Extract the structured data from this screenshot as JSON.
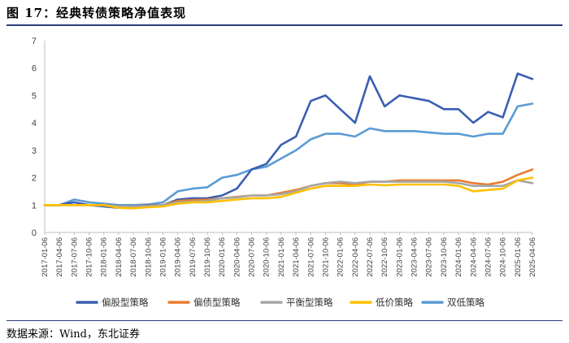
{
  "figure_title": "图 17：经典转债策略净值表现",
  "source_note": "数据来源：Wind，东北证券",
  "chart_data": {
    "type": "line",
    "title": "",
    "xlabel": "",
    "ylabel": "",
    "ylim": [
      0,
      7
    ],
    "yticks": [
      0,
      1,
      2,
      3,
      4,
      5,
      6,
      7
    ],
    "grid": false,
    "legend_position": "bottom",
    "x_tick_labels": [
      "2017-01-06",
      "2017-04-06",
      "2017-07-06",
      "2017-10-06",
      "2018-01-06",
      "2018-04-06",
      "2018-07-06",
      "2018-10-06",
      "2019-01-06",
      "2019-04-06",
      "2019-07-06",
      "2019-10-06",
      "2020-01-06",
      "2020-04-06",
      "2020-07-06",
      "2020-10-06",
      "2021-01-06",
      "2021-04-06",
      "2021-07-06",
      "2021-10-06",
      "2022-01-06",
      "2022-04-06",
      "2022-07-06",
      "2022-10-06",
      "2023-01-06",
      "2023-04-06",
      "2023-07-06",
      "2023-10-06",
      "2024-01-06",
      "2024-04-06",
      "2024-07-06",
      "2024-10-06",
      "2025-01-06",
      "2025-04-06"
    ],
    "series": [
      {
        "name": "偏股型策略",
        "color": "#3a5fb0",
        "values": [
          1.0,
          1.0,
          1.1,
          1.0,
          0.95,
          0.9,
          0.95,
          1.0,
          1.0,
          1.2,
          1.25,
          1.25,
          1.35,
          1.6,
          2.3,
          2.5,
          3.2,
          3.5,
          4.8,
          5.0,
          4.5,
          4.0,
          5.7,
          4.6,
          5.0,
          4.9,
          4.8,
          4.5,
          4.5,
          4.0,
          4.4,
          4.2,
          5.8,
          5.6
        ]
      },
      {
        "name": "偏债型策略",
        "color": "#e87d2e",
        "values": [
          1.0,
          1.0,
          1.0,
          1.0,
          1.0,
          0.95,
          0.95,
          0.98,
          1.0,
          1.15,
          1.18,
          1.2,
          1.25,
          1.3,
          1.35,
          1.35,
          1.45,
          1.55,
          1.7,
          1.8,
          1.8,
          1.75,
          1.85,
          1.85,
          1.9,
          1.9,
          1.9,
          1.9,
          1.9,
          1.8,
          1.75,
          1.85,
          2.1,
          2.3
        ]
      },
      {
        "name": "平衡型策略",
        "color": "#a6a6a6",
        "values": [
          1.0,
          1.0,
          1.0,
          1.0,
          1.0,
          0.95,
          0.95,
          0.97,
          1.0,
          1.1,
          1.12,
          1.15,
          1.25,
          1.28,
          1.35,
          1.35,
          1.4,
          1.5,
          1.7,
          1.8,
          1.85,
          1.8,
          1.85,
          1.85,
          1.85,
          1.85,
          1.85,
          1.85,
          1.8,
          1.7,
          1.7,
          1.7,
          1.9,
          1.8
        ]
      },
      {
        "name": "低价策略",
        "color": "#ffc000",
        "values": [
          1.0,
          1.0,
          1.0,
          1.0,
          1.0,
          0.9,
          0.88,
          0.92,
          0.95,
          1.05,
          1.1,
          1.1,
          1.15,
          1.2,
          1.25,
          1.25,
          1.3,
          1.45,
          1.6,
          1.7,
          1.7,
          1.7,
          1.75,
          1.72,
          1.75,
          1.75,
          1.75,
          1.75,
          1.7,
          1.5,
          1.55,
          1.6,
          1.9,
          2.0
        ]
      },
      {
        "name": "双低策略",
        "color": "#5b9bd5",
        "values": [
          1.0,
          1.0,
          1.2,
          1.1,
          1.05,
          1.0,
          1.0,
          1.02,
          1.1,
          1.5,
          1.6,
          1.65,
          2.0,
          2.1,
          2.3,
          2.4,
          2.7,
          3.0,
          3.4,
          3.6,
          3.6,
          3.5,
          3.8,
          3.7,
          3.7,
          3.7,
          3.65,
          3.6,
          3.6,
          3.5,
          3.6,
          3.6,
          4.6,
          4.7
        ]
      }
    ]
  }
}
